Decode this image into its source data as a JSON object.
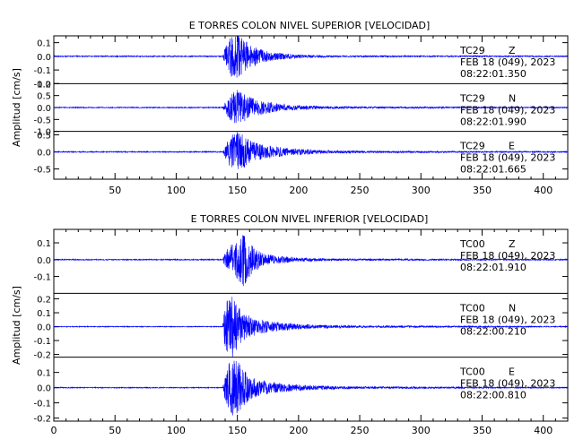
{
  "chart_data": [
    {
      "type": "line",
      "title": "E TORRES COLON NIVEL SUPERIOR [VELOCIDAD]",
      "ylabel": "Amplitud [cm/s]",
      "xlim": [
        0,
        420
      ],
      "xticks": [
        "50",
        "100",
        "150",
        "200",
        "250",
        "300",
        "350",
        "400"
      ],
      "xtick_values": [
        50,
        100,
        150,
        200,
        250,
        300,
        350,
        400
      ],
      "grid": false,
      "panels": [
        {
          "station": "TC29",
          "component": "Z",
          "date": "FEB 18 (049), 2023",
          "time": "08:22:01.350",
          "ylim": [
            -0.2,
            0.15
          ],
          "yticks": [
            "0.1",
            "0.0",
            "-0.1",
            "-0.2"
          ],
          "ytick_values": [
            0.1,
            0.0,
            -0.1,
            -0.2
          ],
          "envelope": [
            [
              0,
              0.004
            ],
            [
              138,
              0.004
            ],
            [
              140,
              0.07
            ],
            [
              145,
              0.15
            ],
            [
              150,
              0.17
            ],
            [
              155,
              0.13
            ],
            [
              160,
              0.09
            ],
            [
              170,
              0.05
            ],
            [
              180,
              0.03
            ],
            [
              200,
              0.012
            ],
            [
              230,
              0.006
            ],
            [
              420,
              0.004
            ]
          ]
        },
        {
          "station": "TC29",
          "component": "N",
          "date": "FEB 18 (049), 2023",
          "time": "08:22:01.990",
          "ylim": [
            -1.0,
            1.0
          ],
          "yticks": [
            "1.0",
            "0.5",
            "0.0",
            "-0.5",
            "-1.0"
          ],
          "ytick_values": [
            1.0,
            0.5,
            0.0,
            -0.5,
            -1.0
          ],
          "envelope": [
            [
              0,
              0.02
            ],
            [
              138,
              0.02
            ],
            [
              141,
              0.3
            ],
            [
              145,
              0.6
            ],
            [
              150,
              0.8
            ],
            [
              155,
              0.6
            ],
            [
              160,
              0.45
            ],
            [
              170,
              0.3
            ],
            [
              185,
              0.15
            ],
            [
              210,
              0.07
            ],
            [
              250,
              0.04
            ],
            [
              420,
              0.02
            ]
          ]
        },
        {
          "station": "TC29",
          "component": "E",
          "date": "FEB 18 (049), 2023",
          "time": "08:22:01.665",
          "ylim": [
            -0.8,
            0.6
          ],
          "yticks": [
            "0.5",
            "0.0",
            "-0.5"
          ],
          "ytick_values": [
            0.5,
            0.0,
            -0.5
          ],
          "envelope": [
            [
              0,
              0.015
            ],
            [
              138,
              0.015
            ],
            [
              141,
              0.25
            ],
            [
              145,
              0.5
            ],
            [
              150,
              0.6
            ],
            [
              155,
              0.5
            ],
            [
              160,
              0.35
            ],
            [
              170,
              0.22
            ],
            [
              190,
              0.12
            ],
            [
              220,
              0.05
            ],
            [
              260,
              0.03
            ],
            [
              420,
              0.015
            ]
          ]
        }
      ]
    },
    {
      "type": "line",
      "title": "E TORRES COLON NIVEL INFERIOR [VELOCIDAD]",
      "ylabel": "Amplitud [cm/s]",
      "xlim": [
        0,
        420
      ],
      "xticks": [
        "0",
        "50",
        "100",
        "150",
        "200",
        "250",
        "300",
        "350",
        "400"
      ],
      "xtick_values": [
        0,
        50,
        100,
        150,
        200,
        250,
        300,
        350,
        400
      ],
      "grid": false,
      "panels": [
        {
          "station": "TC00",
          "component": "Z",
          "date": "FEB 18 (049), 2023",
          "time": "08:22:01.910",
          "ylim": [
            -0.2,
            0.18
          ],
          "yticks": [
            "0.1",
            "0.0",
            "-0.1"
          ],
          "ytick_values": [
            0.1,
            0.0,
            -0.1
          ],
          "envelope": [
            [
              0,
              0.003
            ],
            [
              138,
              0.003
            ],
            [
              140,
              0.05
            ],
            [
              145,
              0.09
            ],
            [
              150,
              0.12
            ],
            [
              155,
              0.16
            ],
            [
              160,
              0.1
            ],
            [
              170,
              0.04
            ],
            [
              180,
              0.025
            ],
            [
              200,
              0.012
            ],
            [
              230,
              0.006
            ],
            [
              420,
              0.003
            ]
          ]
        },
        {
          "station": "TC00",
          "component": "N",
          "date": "FEB 18 (049), 2023",
          "time": "08:22:00.210",
          "ylim": [
            -0.22,
            0.24
          ],
          "yticks": [
            "0.2",
            "0.1",
            "0.0",
            "-0.1",
            "-0.2"
          ],
          "ytick_values": [
            0.2,
            0.1,
            0.0,
            -0.1,
            -0.2
          ],
          "envelope": [
            [
              0,
              0.003
            ],
            [
              138,
              0.003
            ],
            [
              139,
              0.12
            ],
            [
              142,
              0.2
            ],
            [
              146,
              0.22
            ],
            [
              150,
              0.16
            ],
            [
              155,
              0.1
            ],
            [
              160,
              0.08
            ],
            [
              170,
              0.05
            ],
            [
              185,
              0.03
            ],
            [
              210,
              0.015
            ],
            [
              250,
              0.008
            ],
            [
              420,
              0.003
            ]
          ]
        },
        {
          "station": "TC00",
          "component": "E",
          "date": "FEB 18 (049), 2023",
          "time": "08:22:00.810",
          "ylim": [
            -0.22,
            0.2
          ],
          "yticks": [
            "0.1",
            "0.0",
            "-0.1",
            "-0.2"
          ],
          "ytick_values": [
            0.1,
            0.0,
            -0.1,
            -0.2
          ],
          "envelope": [
            [
              0,
              0.003
            ],
            [
              138,
              0.003
            ],
            [
              140,
              0.1
            ],
            [
              143,
              0.16
            ],
            [
              147,
              0.19
            ],
            [
              150,
              0.18
            ],
            [
              155,
              0.12
            ],
            [
              160,
              0.08
            ],
            [
              170,
              0.05
            ],
            [
              185,
              0.03
            ],
            [
              210,
              0.015
            ],
            [
              250,
              0.008
            ],
            [
              420,
              0.003
            ]
          ]
        }
      ]
    }
  ]
}
